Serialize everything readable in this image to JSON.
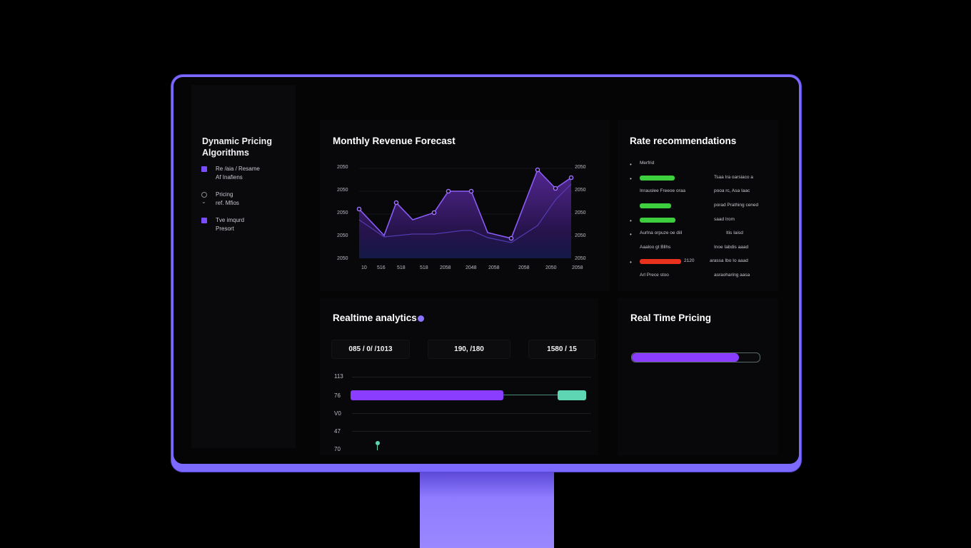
{
  "sidebar": {
    "title": "Dynamic Pricing Algorithms",
    "items": [
      {
        "label": "Re /aia / Resame\nAf Inafiens",
        "icon": "square-icon"
      },
      {
        "label": "Pricing\nref. Mfios",
        "icon": "circle-icon"
      },
      {
        "label": "Tve imqurd\nPresort",
        "icon": "square-icon"
      }
    ]
  },
  "forecast": {
    "title": "Monthly Revenue Forecast",
    "y_left_ticks": [
      "2050",
      "2050",
      "2050",
      "2050",
      "2050"
    ],
    "y_right_ticks": [
      "2050",
      "2050",
      "2050",
      "2050",
      "2050"
    ],
    "x_ticks": [
      "10",
      "516",
      "518",
      "518",
      "2058",
      "2048",
      "2058",
      "2058",
      "2050",
      "2058"
    ],
    "colors": {
      "line": "#8a5cf6",
      "fill": "#3b1c6e",
      "secondary": "#5b45c9"
    }
  },
  "rates": {
    "title": "Rate recommendations",
    "header": "Merfrid",
    "rows": [
      {
        "left": "",
        "right": "Tsaa Ira oarsiaco a",
        "bar": "green",
        "bar_fraction": 0.78
      },
      {
        "left": "Inrauslee Freeoe oraa",
        "right": "pooa rc, Asa Iaac",
        "bar": null
      },
      {
        "left": "",
        "right": "porad Prathing cened",
        "bar": "green",
        "bar_fraction": 0.82
      },
      {
        "left": "",
        "right": "saad Irom",
        "bar": "green",
        "bar_fraction": 0.84
      },
      {
        "left": "Aurlna orpuze oe diil",
        "right": "Itis Iaisd",
        "bar": null
      },
      {
        "left": "Aaaloo gt Bllhs",
        "right": "Inoe Iabdis aaad",
        "bar": null
      },
      {
        "left": "2120",
        "right": "arassa Ibo Io aaad",
        "bar": "red",
        "bar_fraction": 1.0
      },
      {
        "left": "Arl Prece stoo",
        "right": "asraoharing aasa",
        "bar": null
      }
    ],
    "colors": {
      "green": "#3ecf3e",
      "red": "#e8321e"
    }
  },
  "analytics": {
    "title": "Realtime analytics",
    "stats": [
      "085 / 0/ /1013",
      "190, /180",
      "1580 / 15"
    ],
    "row_labels": [
      "113",
      "76",
      "V0",
      "47",
      "70"
    ],
    "progress": {
      "purple_fraction": 0.65,
      "teal_fraction": 0.12
    },
    "colors": {
      "purple": "#8a3cff",
      "teal": "#5ed6b4"
    }
  },
  "pricing": {
    "title": "Real Time Pricing",
    "progress_fraction": 0.84,
    "colors": {
      "bar": "#8a3cff"
    }
  }
}
